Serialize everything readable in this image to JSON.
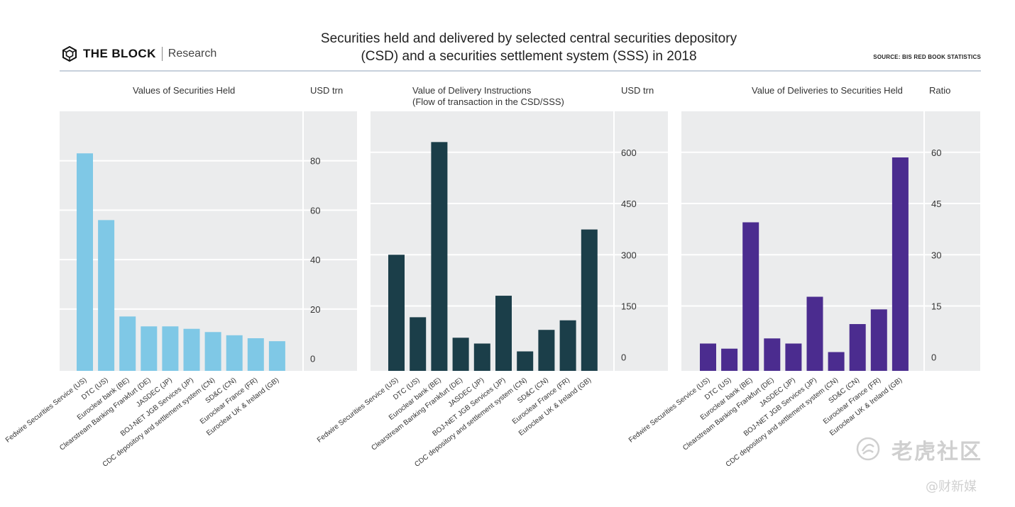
{
  "brand": {
    "name": "THE BLOCK",
    "sub": "Research"
  },
  "title_line1": "Securities held and delivered by selected central securities depository",
  "title_line2": "(CSD) and a securities settlement system (SSS) in 2018",
  "source": "SOURCE: BIS RED BOOK STATISTICS",
  "watermark": {
    "cn": "老虎社区",
    "sub": "@财新媒"
  },
  "colors": {
    "panel_bg": "#ebeced",
    "grid": "#ffffff",
    "held": "#7fc8e6",
    "delivery": "#1b3e49",
    "ratio": "#4b2c8f",
    "rule": "#c7d0dc"
  },
  "chart_data": [
    {
      "type": "bar",
      "title": "Values of Securities Held",
      "subtitle": "",
      "unit": "USD trn",
      "categories": [
        "Fedwire Securities Service (US)",
        "DTC (US)",
        "Euroclear bank (BE)",
        "Clearstream Banking Frankfurt (DE)",
        "JASDEC (JP)",
        "BOJ-NET JGB Services (JP)",
        "CDC depository and settlement system (CN)",
        "SD&C (CN)",
        "Euroclear France (FR)",
        "Euroclear UK & Ireland (GB)"
      ],
      "values": [
        83,
        56,
        17,
        13,
        13,
        12,
        10.7,
        9.4,
        8.2,
        7
      ],
      "ticks": [
        0,
        20,
        40,
        60,
        80
      ],
      "ylim": [
        -5,
        100
      ],
      "grid": true,
      "color": "#7fc8e6"
    },
    {
      "type": "bar",
      "title": "Value of Delivery Instructions",
      "subtitle": "(Flow of transaction in the CSD/SSS)",
      "unit": "USD trn",
      "categories": [
        "Fedwire Securities Service (US)",
        "DTC (US)",
        "Euroclear bank (BE)",
        "Clearstream Banking Frankfurt (DE)",
        "JASDEC (JP)",
        "BOJ-NET JGB Services (JP)",
        "CDC depository and settlement system (CN)",
        "SD&C (CN)",
        "Euroclear France (FR)",
        "Euroclear UK & Ireland (GB)"
      ],
      "values": [
        300,
        117,
        630,
        57,
        40,
        180,
        17,
        80,
        108,
        374
      ],
      "ticks": [
        0,
        150,
        300,
        450,
        600
      ],
      "ylim": [
        -40,
        720
      ],
      "grid": true,
      "color": "#1b3e49"
    },
    {
      "type": "bar",
      "title": "Value of Deliveries to Securities Held",
      "subtitle": "",
      "unit": "Ratio",
      "categories": [
        "Fedwire Securities Service (US)",
        "DTC (US)",
        "Euroclear bank (BE)",
        "Clearstream Banking Frankfurt (DE)",
        "JASDEC (JP)",
        "BOJ-NET JGB Services (JP)",
        "CDC depository and settlement system (CN)",
        "SD&C (CN)",
        "Euroclear France (FR)",
        "Euroclear UK & Ireland (GB)"
      ],
      "values": [
        4,
        2.5,
        39.5,
        5.5,
        4,
        17.7,
        1.5,
        9.7,
        14,
        58.5
      ],
      "ticks": [
        0,
        15,
        30,
        45,
        60
      ],
      "ylim": [
        -4,
        72
      ],
      "grid": true,
      "color": "#4b2c8f"
    }
  ]
}
